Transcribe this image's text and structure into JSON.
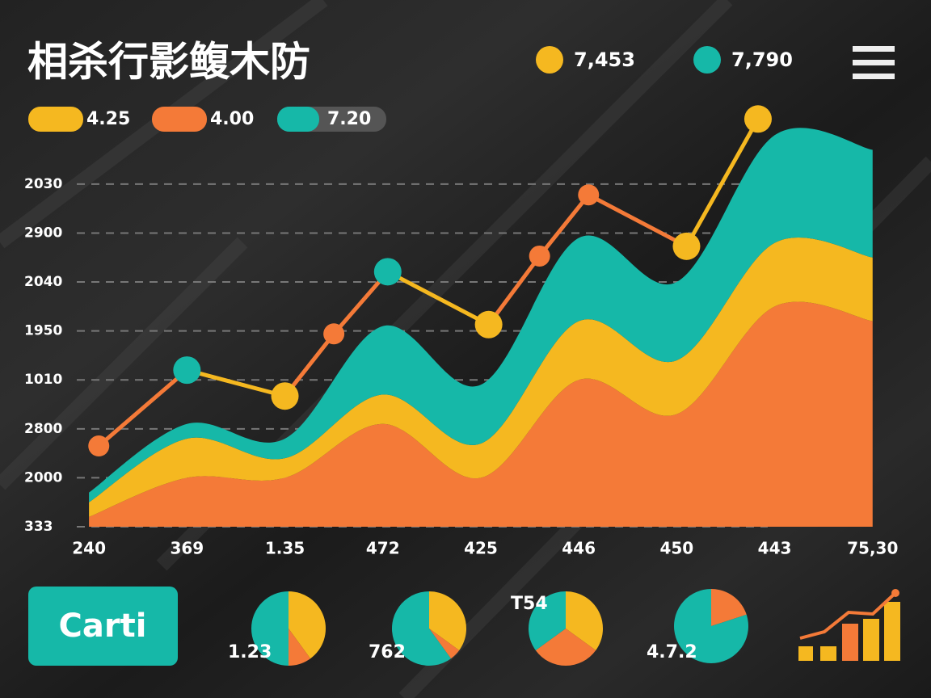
{
  "title": "相杀行影鳆木防",
  "top_legend": [
    {
      "label": "7,453",
      "color": "#f5b820"
    },
    {
      "label": "7,790",
      "color": "#16b8a8"
    }
  ],
  "pills": [
    {
      "label": "4.25",
      "color": "#f5b820"
    },
    {
      "label": "4.00",
      "color": "#f47a38"
    },
    {
      "label": "7.20",
      "color": "#16b8a8"
    }
  ],
  "button": "Carti",
  "chart_data": {
    "type": "stacked-area-line",
    "xlim": [
      -0.1,
      8.2
    ],
    "xticks": [
      {
        "value": 0,
        "label": "240"
      },
      {
        "value": 1,
        "label": "369"
      },
      {
        "value": 2,
        "label": "1.35"
      },
      {
        "value": 3,
        "label": "472"
      },
      {
        "value": 4,
        "label": "425"
      },
      {
        "value": 5,
        "label": "446"
      },
      {
        "value": 6,
        "label": "450"
      },
      {
        "value": 7,
        "label": "443"
      },
      {
        "value": 8,
        "label": "75,30"
      }
    ],
    "ylim": [
      0,
      8.5
    ],
    "yticks": [
      {
        "value": 0,
        "label": "333"
      },
      {
        "value": 1,
        "label": "2000"
      },
      {
        "value": 2,
        "label": "2800"
      },
      {
        "value": 3,
        "label": "1010"
      },
      {
        "value": 4,
        "label": "1950"
      },
      {
        "value": 5,
        "label": "2040"
      },
      {
        "value": 6,
        "label": "2900"
      },
      {
        "value": 7,
        "label": "2030"
      }
    ],
    "grid": true,
    "series": [
      {
        "color": "#f47a38",
        "values": [
          0.2,
          1.0,
          1.0,
          2.1,
          1.0,
          3.0,
          2.3,
          4.5,
          4.2
        ]
      },
      {
        "color": "#f5b820",
        "values": [
          0.3,
          0.8,
          0.4,
          0.6,
          0.7,
          1.2,
          1.1,
          1.3,
          1.3
        ]
      },
      {
        "color": "#16b8a8",
        "values": [
          0.2,
          0.3,
          0.4,
          1.4,
          1.2,
          1.7,
          1.6,
          2.2,
          2.2
        ]
      }
    ],
    "line": {
      "color": "#f47a38",
      "x": [
        0.1,
        1.0,
        2.0,
        2.5,
        3.05,
        4.08,
        4.6,
        5.1,
        6.1,
        6.83
      ],
      "values": [
        1.65,
        3.2,
        2.67,
        3.94,
        5.21,
        4.13,
        5.53,
        6.78,
        5.73,
        8.33
      ],
      "segment_colors": [
        "#f47a38",
        "#f5b820",
        "#f47a38",
        "#f47a38",
        "#f5b820",
        "#f47a38",
        "#f47a38",
        "#f47a38",
        "#f5b820"
      ],
      "point_colors": [
        "#f47a38",
        "#16b8a8",
        "#f5b820",
        "#f47a38",
        "#16b8a8",
        "#f5b820",
        "#f47a38",
        "#f47a38",
        "#f5b820",
        "#f5b820"
      ]
    }
  },
  "pies": [
    {
      "label": "1.23",
      "values": [
        40,
        10,
        50
      ],
      "colors": [
        "#f5b820",
        "#f47a38",
        "#16b8a8"
      ]
    },
    {
      "label": "762",
      "values": [
        35,
        5,
        60
      ],
      "colors": [
        "#f5b820",
        "#f47a38",
        "#16b8a8"
      ]
    },
    {
      "label": "T54",
      "values": [
        35,
        30,
        35
      ],
      "colors": [
        "#f5b820",
        "#f47a38",
        "#16b8a8"
      ]
    },
    {
      "label": "4.7.2",
      "values": [
        20,
        80
      ],
      "colors": [
        "#f47a38",
        "#16b8a8"
      ]
    }
  ]
}
